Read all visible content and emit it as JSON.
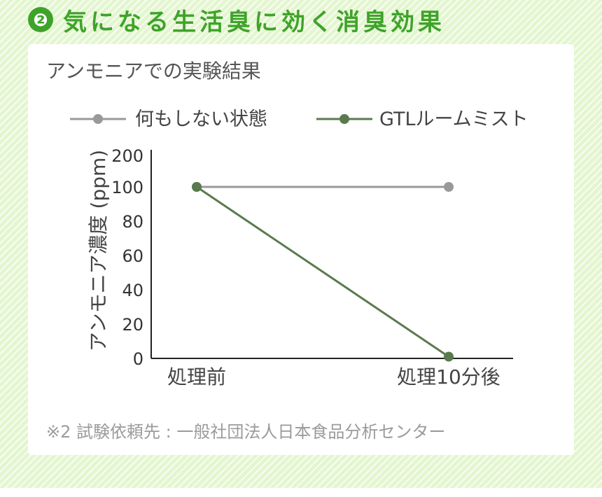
{
  "header": {
    "badge": "❷",
    "title": "気になる生活臭に効く消臭効果"
  },
  "chart_title": "アンモニアでの実験結果",
  "footnote": "※2 試験依頼先 : 一般社団法人日本食品分析センター",
  "colors": {
    "header_green": "#3fa32a",
    "background": "#e3f6cf",
    "series_none": "#999999",
    "series_mist": "#5a7a4e",
    "axis": "#222222"
  },
  "chart_data": {
    "type": "line",
    "categories": [
      "処理前",
      "処理10分後"
    ],
    "series": [
      {
        "name": "何もしない状態",
        "values": [
          100,
          100
        ]
      },
      {
        "name": "GTLルームミスト",
        "values": [
          100,
          1
        ]
      }
    ],
    "ylabel": "アンモニア濃度 (ppm)",
    "xlabel": "",
    "yticks": [
      0,
      20,
      40,
      60,
      80,
      100,
      200
    ],
    "ylim": [
      0,
      200
    ],
    "grid": false,
    "legend_position": "top"
  }
}
